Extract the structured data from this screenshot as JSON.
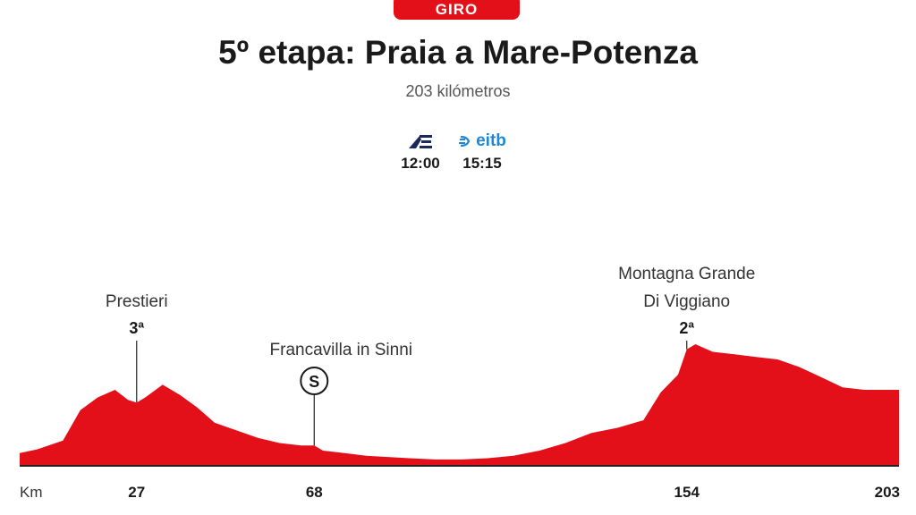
{
  "header": {
    "competition": "GIRO",
    "title": "5º etapa: Praia a Mare-Potenza",
    "distance": "203 kilómetros"
  },
  "broadcast": [
    {
      "channel_icon": "teledeporte-logo-icon",
      "time": "12:00"
    },
    {
      "channel_icon": "eitb-logo-icon",
      "channel_label": "eitb",
      "time": "15:15"
    }
  ],
  "colors": {
    "accent": "#e3101a",
    "profile_fill": "#e3101a",
    "eitb_blue": "#1e88d6"
  },
  "chart_data": {
    "type": "area",
    "title": "",
    "xlabel": "Km",
    "ylabel": "",
    "xlim": [
      0,
      203
    ],
    "x_ticks": [
      {
        "value": 27,
        "label": "27"
      },
      {
        "value": 68,
        "label": "68"
      },
      {
        "value": 154,
        "label": "154"
      },
      {
        "value": 203,
        "label": "203"
      }
    ],
    "series": [
      {
        "x": [
          0,
          4,
          10,
          14,
          18,
          22,
          25,
          27,
          29,
          33,
          37,
          41,
          45,
          50,
          55,
          60,
          65,
          68,
          70,
          75,
          80,
          85,
          90,
          96,
          102,
          108,
          114,
          120,
          126,
          132,
          138,
          144,
          148,
          152,
          154,
          156,
          160,
          165,
          170,
          175,
          180,
          185,
          190,
          195,
          198,
          200,
          203
        ],
        "y": [
          5,
          6.5,
          10,
          22,
          27,
          30,
          26,
          25,
          27,
          32,
          28,
          23,
          17,
          14,
          11,
          9,
          8,
          8,
          6,
          5,
          4,
          3.5,
          3,
          2.5,
          2.5,
          3,
          4,
          6,
          9,
          13,
          15,
          18,
          29,
          36,
          46,
          48,
          45,
          44,
          43,
          42,
          39,
          35,
          31,
          30,
          30,
          30,
          30
        ]
      }
    ],
    "annotations": [
      {
        "km": 27,
        "name": "Prestieri",
        "category": "3ª",
        "type": "climb"
      },
      {
        "km": 68,
        "name": "Francavilla in Sinni",
        "marker": "S",
        "type": "sprint"
      },
      {
        "km": 154,
        "name": "Montagna Grande Di Viggiano",
        "category": "2ª",
        "type": "climb"
      }
    ]
  }
}
